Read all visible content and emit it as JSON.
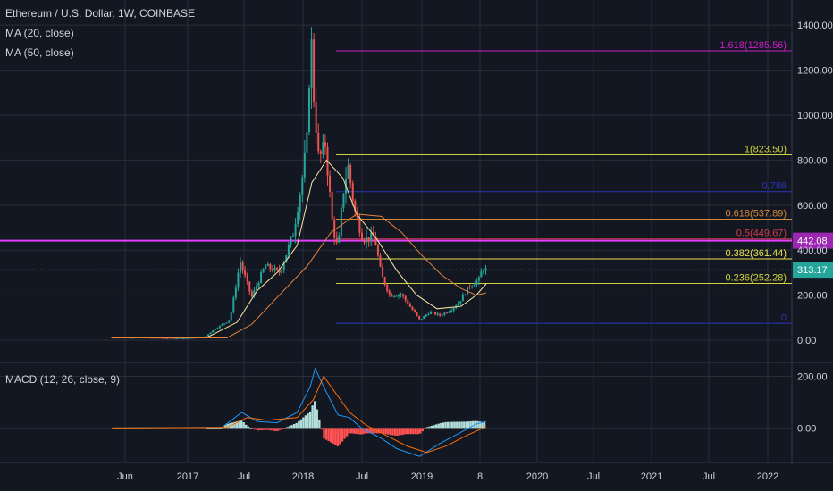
{
  "header": {
    "title": "Ethereum / U.S. Dollar, 1W, COINBASE",
    "ma20": "MA (20, close)",
    "ma50": "MA (50, close)"
  },
  "macd_panel": {
    "label": "MACD (12, 26, close, 9)"
  },
  "colors": {
    "background": "#131722",
    "grid": "#2a2e39",
    "text": "#d1d4dc",
    "up_candle": "#26a69a",
    "down_candle": "#ef5350",
    "ma20": "#f6e6a2",
    "ma50": "#e8823a",
    "macd_line": "#2196f3",
    "signal_line": "#ff6d00",
    "price_label_bg": "#26a69a",
    "level_label_bg": "#9c27b0"
  },
  "chart_data": [
    {
      "type": "candlestick",
      "title": "Ethereum / U.S. Dollar, 1W, COINBASE",
      "y_ticks": [
        0,
        200,
        400,
        600,
        800,
        1000,
        1200,
        1400
      ],
      "y_tick_labels": [
        "0.00",
        "200.00",
        "400.00",
        "600.00",
        "800.00",
        "1000.00",
        "1200.00",
        "1400.00"
      ],
      "ylim": [
        -95,
        1480
      ],
      "x_ticks": [
        "Jun",
        "2017",
        "Jul",
        "2018",
        "Jul",
        "2019",
        "8",
        "2020",
        "Jul",
        "2021",
        "Jul",
        "2022"
      ],
      "price_path": [
        [
          "2016-05-15",
          12
        ],
        [
          "2016-09-01",
          11
        ],
        [
          "2016-12-15",
          8
        ],
        [
          "2017-02-20",
          13
        ],
        [
          "2017-03-25",
          50
        ],
        [
          "2017-05-10",
          90
        ],
        [
          "2017-06-10",
          350
        ],
        [
          "2017-07-15",
          190
        ],
        [
          "2017-08-25",
          330
        ],
        [
          "2017-10-10",
          300
        ],
        [
          "2017-11-20",
          480
        ],
        [
          "2017-12-15",
          700
        ],
        [
          "2018-01-01",
          900
        ],
        [
          "2018-01-12",
          1380
        ],
        [
          "2018-01-20",
          1100
        ],
        [
          "2018-02-05",
          800
        ],
        [
          "2018-02-25",
          870
        ],
        [
          "2018-03-20",
          500
        ],
        [
          "2018-04-05",
          400
        ],
        [
          "2018-04-20",
          650
        ],
        [
          "2018-05-05",
          780
        ],
        [
          "2018-05-25",
          580
        ],
        [
          "2018-06-20",
          450
        ],
        [
          "2018-07-25",
          460
        ],
        [
          "2018-08-15",
          290
        ],
        [
          "2018-09-10",
          200
        ],
        [
          "2018-10-15",
          205
        ],
        [
          "2018-11-15",
          140
        ],
        [
          "2018-12-10",
          90
        ],
        [
          "2019-01-10",
          125
        ],
        [
          "2019-02-10",
          110
        ],
        [
          "2019-03-15",
          135
        ],
        [
          "2019-04-10",
          170
        ],
        [
          "2019-05-10",
          240
        ],
        [
          "2019-06-10",
          270
        ],
        [
          "2019-06-20",
          320
        ],
        [
          "2019-07-01",
          313
        ]
      ],
      "ma20_path": [
        [
          "2016-05-15",
          12
        ],
        [
          "2017-03-01",
          12
        ],
        [
          "2017-06-01",
          80
        ],
        [
          "2017-08-01",
          220
        ],
        [
          "2017-10-01",
          300
        ],
        [
          "2017-12-01",
          420
        ],
        [
          "2018-01-15",
          700
        ],
        [
          "2018-03-01",
          800
        ],
        [
          "2018-04-20",
          720
        ],
        [
          "2018-06-01",
          560
        ],
        [
          "2018-08-01",
          450
        ],
        [
          "2018-10-01",
          310
        ],
        [
          "2018-12-01",
          200
        ],
        [
          "2019-02-01",
          140
        ],
        [
          "2019-04-15",
          150
        ],
        [
          "2019-06-01",
          200
        ],
        [
          "2019-07-01",
          250
        ]
      ],
      "ma50_path": [
        [
          "2016-05-15",
          10
        ],
        [
          "2017-05-01",
          10
        ],
        [
          "2017-07-15",
          70
        ],
        [
          "2017-10-01",
          190
        ],
        [
          "2018-01-01",
          330
        ],
        [
          "2018-03-15",
          480
        ],
        [
          "2018-06-01",
          560
        ],
        [
          "2018-08-15",
          550
        ],
        [
          "2018-10-15",
          480
        ],
        [
          "2018-12-15",
          380
        ],
        [
          "2019-02-15",
          290
        ],
        [
          "2019-04-15",
          230
        ],
        [
          "2019-06-01",
          200
        ],
        [
          "2019-07-01",
          210
        ]
      ],
      "fib_levels": [
        {
          "ratio": "1.618",
          "price": 1285.56,
          "label": "1.618(1285.56)",
          "color": "#c71ec7"
        },
        {
          "ratio": "1",
          "price": 823.5,
          "label": "1(823.50)",
          "color": "#cfd23c"
        },
        {
          "ratio": "0.786",
          "price": 660,
          "color": "#2b35b8"
        },
        {
          "ratio": "0.618",
          "price": 537.89,
          "label": "0.618(537.89)",
          "color": "#d08a3a"
        },
        {
          "ratio": "0.5",
          "price": 449.67,
          "label": "0.5(449.67)",
          "color": "#d23a4a"
        },
        {
          "ratio": "0.382",
          "price": 361.44,
          "label": "0.382(361.44)",
          "color": "#e6e24a"
        },
        {
          "ratio": "0.236",
          "price": 252.28,
          "label": "0.236(252.28)",
          "color": "#cfd23c"
        },
        {
          "ratio": "0",
          "price": 75,
          "color": "#2b35b8"
        }
      ],
      "horizontal_line": {
        "price": 442.08,
        "label": "442.08",
        "color": "#e040fb"
      },
      "last_price": {
        "price": 313.17,
        "label": "313.17"
      }
    },
    {
      "type": "line",
      "title": "MACD (12, 26, close, 9)",
      "y_ticks": [
        0,
        200
      ],
      "y_tick_labels": [
        "0.00",
        "200.00"
      ],
      "ylim": [
        -130,
        250
      ],
      "series": [
        {
          "role": "macd",
          "color": "#2196f3",
          "path": [
            [
              "2016-05-15",
              0
            ],
            [
              "2017-04-15",
              2
            ],
            [
              "2017-06-15",
              60
            ],
            [
              "2017-08-01",
              25
            ],
            [
              "2017-10-01",
              20
            ],
            [
              "2017-12-01",
              60
            ],
            [
              "2018-01-10",
              160
            ],
            [
              "2018-01-25",
              230
            ],
            [
              "2018-02-20",
              160
            ],
            [
              "2018-04-05",
              50
            ],
            [
              "2018-05-10",
              40
            ],
            [
              "2018-06-15",
              0
            ],
            [
              "2018-08-15",
              -40
            ],
            [
              "2018-10-01",
              -80
            ],
            [
              "2018-12-10",
              -110
            ],
            [
              "2019-02-10",
              -60
            ],
            [
              "2019-04-10",
              -20
            ],
            [
              "2019-06-01",
              15
            ],
            [
              "2019-07-01",
              25
            ]
          ]
        },
        {
          "role": "signal",
          "color": "#ff6d00",
          "path": [
            [
              "2016-05-15",
              0
            ],
            [
              "2017-05-01",
              2
            ],
            [
              "2017-07-01",
              40
            ],
            [
              "2017-09-01",
              30
            ],
            [
              "2017-12-01",
              40
            ],
            [
              "2018-01-20",
              110
            ],
            [
              "2018-02-20",
              200
            ],
            [
              "2018-03-20",
              150
            ],
            [
              "2018-05-10",
              60
            ],
            [
              "2018-07-01",
              10
            ],
            [
              "2018-09-01",
              -30
            ],
            [
              "2018-11-01",
              -70
            ],
            [
              "2019-01-01",
              -95
            ],
            [
              "2019-03-01",
              -70
            ],
            [
              "2019-05-01",
              -30
            ],
            [
              "2019-07-01",
              5
            ]
          ]
        }
      ]
    }
  ]
}
